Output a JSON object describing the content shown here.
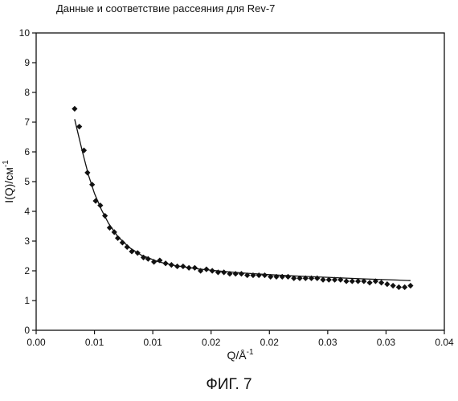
{
  "title": "Данные и соответствие рассеяния для Rev-7",
  "figure_caption": "ФИГ. 7",
  "chart_data": {
    "type": "scatter",
    "title": "Данные и соответствие рассеяния для Rev-7",
    "xlabel": "Q/Å",
    "xlabel_sup": "-1",
    "ylabel": "I(Q)/см",
    "ylabel_sup": "-1",
    "xlim": [
      0.0,
      0.035
    ],
    "ylim": [
      0,
      10
    ],
    "x_tick_labels": [
      "0.00",
      "0.01",
      "0.01",
      "0.02",
      "0.02",
      "0.03",
      "0.03",
      "0.04"
    ],
    "x_tick_positions": [
      0.0,
      0.005,
      0.01,
      0.015,
      0.02,
      0.025,
      0.03,
      0.035
    ],
    "y_ticks": [
      0,
      1,
      2,
      3,
      4,
      5,
      6,
      7,
      8,
      9,
      10
    ],
    "grid": false,
    "series": [
      {
        "kind": "points",
        "marker": "diamond",
        "color": "#111111",
        "x": [
          0.0033,
          0.0037,
          0.0041,
          0.0044,
          0.0048,
          0.0051,
          0.0055,
          0.0059,
          0.0063,
          0.0067,
          0.007,
          0.0074,
          0.0078,
          0.0082,
          0.0087,
          0.0092,
          0.0096,
          0.0101,
          0.0106,
          0.0111,
          0.0116,
          0.0121,
          0.0126,
          0.0131,
          0.0136,
          0.0141,
          0.0146,
          0.0151,
          0.0156,
          0.0161,
          0.0166,
          0.0171,
          0.0176,
          0.0181,
          0.0186,
          0.0191,
          0.0196,
          0.0201,
          0.0206,
          0.0211,
          0.0216,
          0.0221,
          0.0226,
          0.0231,
          0.0236,
          0.0241,
          0.0246,
          0.0251,
          0.0256,
          0.0261,
          0.0266,
          0.0271,
          0.0276,
          0.0281,
          0.0286,
          0.0291,
          0.0296,
          0.0301,
          0.0306,
          0.0311,
          0.0316,
          0.0321
        ],
        "y": [
          7.45,
          6.85,
          6.05,
          5.3,
          4.9,
          4.35,
          4.2,
          3.85,
          3.45,
          3.3,
          3.1,
          2.95,
          2.8,
          2.65,
          2.6,
          2.45,
          2.4,
          2.3,
          2.35,
          2.25,
          2.2,
          2.15,
          2.15,
          2.1,
          2.1,
          2.0,
          2.05,
          2.0,
          1.95,
          1.95,
          1.9,
          1.9,
          1.9,
          1.85,
          1.85,
          1.85,
          1.85,
          1.8,
          1.8,
          1.8,
          1.8,
          1.75,
          1.75,
          1.75,
          1.75,
          1.75,
          1.7,
          1.7,
          1.7,
          1.7,
          1.65,
          1.65,
          1.65,
          1.65,
          1.6,
          1.65,
          1.6,
          1.55,
          1.5,
          1.45,
          1.45,
          1.5
        ]
      },
      {
        "kind": "fit",
        "color": "#111111",
        "x": [
          0.0033,
          0.0036,
          0.004,
          0.0045,
          0.005,
          0.0056,
          0.0062,
          0.007,
          0.008,
          0.009,
          0.0105,
          0.012,
          0.014,
          0.016,
          0.018,
          0.02,
          0.022,
          0.025,
          0.028,
          0.031,
          0.0321
        ],
        "y": [
          7.1,
          6.6,
          5.95,
          5.2,
          4.6,
          4.05,
          3.6,
          3.15,
          2.78,
          2.53,
          2.3,
          2.17,
          2.06,
          1.98,
          1.92,
          1.87,
          1.83,
          1.78,
          1.73,
          1.69,
          1.67
        ]
      }
    ]
  }
}
